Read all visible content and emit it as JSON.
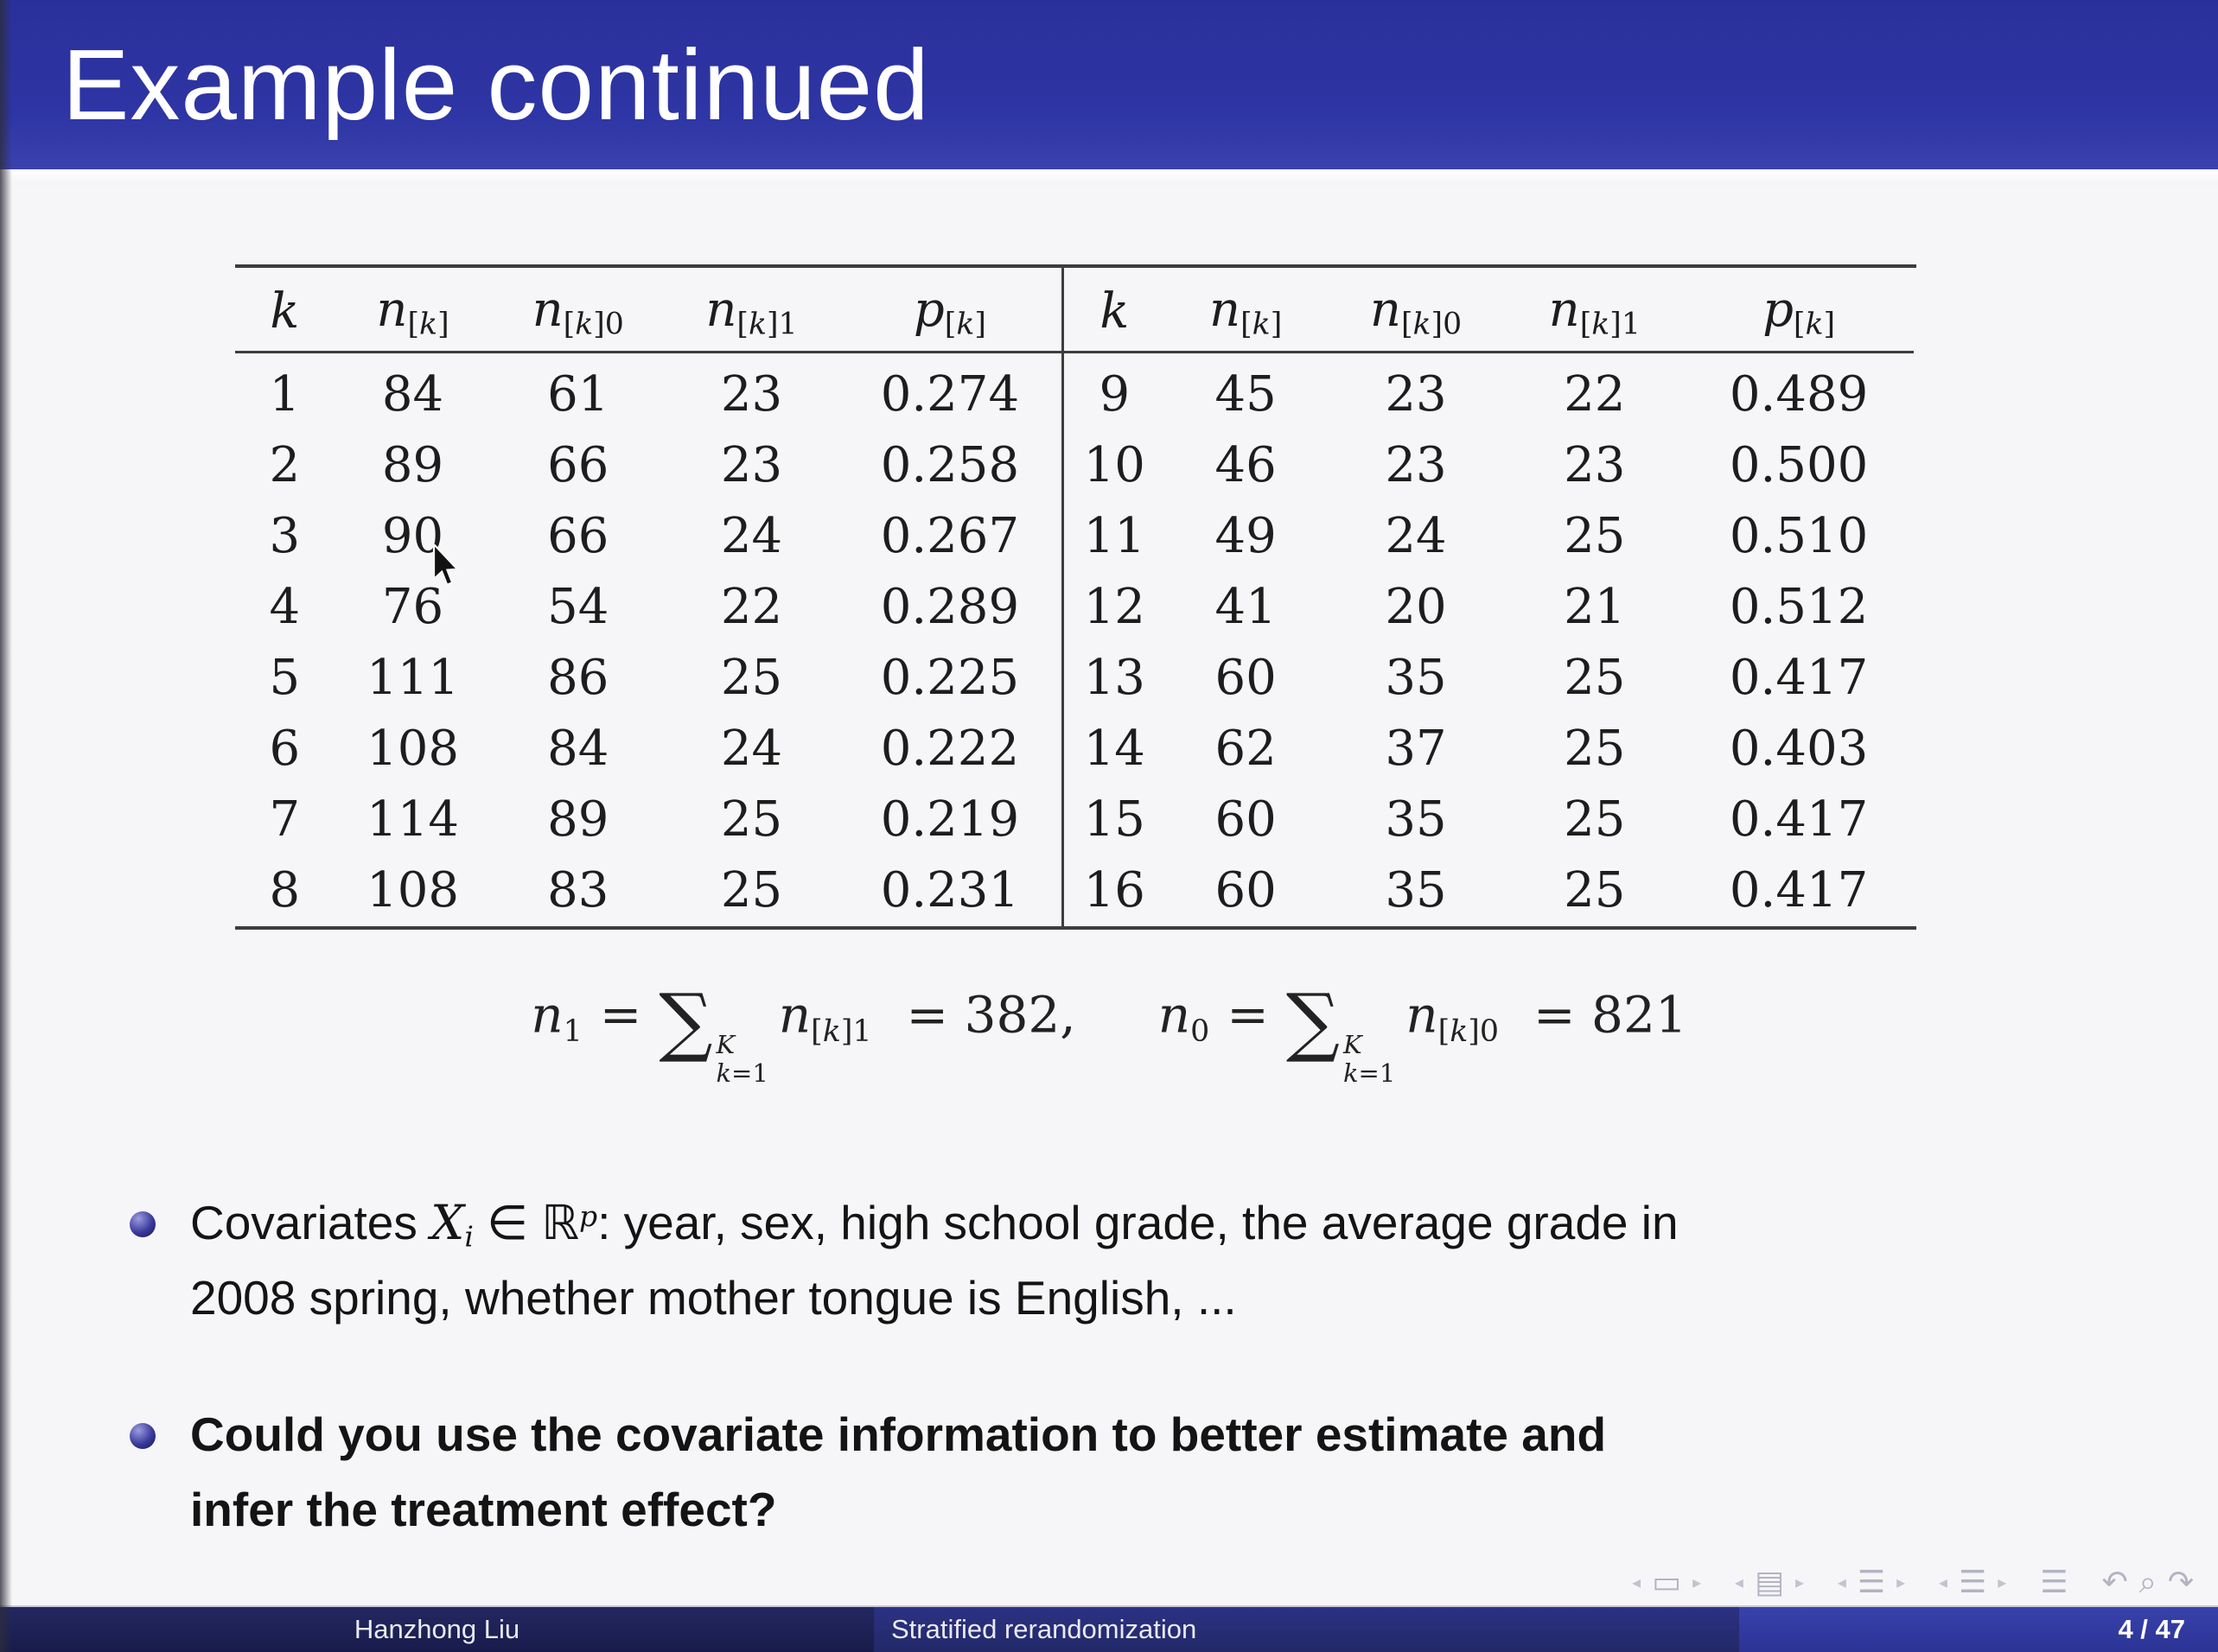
{
  "slide": {
    "title": "Example continued",
    "colors": {
      "titlebar_blue": "#2e35a4",
      "footer_author_bg": "#1b1e52",
      "footer_title_bg": "#272d7c",
      "footer_page_bg": "#3039a0",
      "bullet_ball": "#39399b",
      "background": "#f6f6f8"
    }
  },
  "table": {
    "headers": [
      {
        "base": "k",
        "sub": ""
      },
      {
        "base": "n",
        "sub": "[k]"
      },
      {
        "base": "n",
        "sub": "[k]0"
      },
      {
        "base": "n",
        "sub": "[k]1"
      },
      {
        "base": "p",
        "sub": "[k]"
      }
    ],
    "left_rows": [
      [
        "1",
        "84",
        "61",
        "23",
        "0.274"
      ],
      [
        "2",
        "89",
        "66",
        "23",
        "0.258"
      ],
      [
        "3",
        "90",
        "66",
        "24",
        "0.267"
      ],
      [
        "4",
        "76",
        "54",
        "22",
        "0.289"
      ],
      [
        "5",
        "111",
        "86",
        "25",
        "0.225"
      ],
      [
        "6",
        "108",
        "84",
        "24",
        "0.222"
      ],
      [
        "7",
        "114",
        "89",
        "25",
        "0.219"
      ],
      [
        "8",
        "108",
        "83",
        "25",
        "0.231"
      ]
    ],
    "right_rows": [
      [
        "9",
        "45",
        "23",
        "22",
        "0.489"
      ],
      [
        "10",
        "46",
        "23",
        "23",
        "0.500"
      ],
      [
        "11",
        "49",
        "24",
        "25",
        "0.510"
      ],
      [
        "12",
        "41",
        "20",
        "21",
        "0.512"
      ],
      [
        "13",
        "60",
        "35",
        "25",
        "0.417"
      ],
      [
        "14",
        "62",
        "37",
        "25",
        "0.403"
      ],
      [
        "15",
        "60",
        "35",
        "25",
        "0.417"
      ],
      [
        "16",
        "60",
        "35",
        "25",
        "0.417"
      ]
    ]
  },
  "formula": {
    "left": {
      "var": "n",
      "var_sub": "1",
      "equals": "=",
      "sum": "∑",
      "sum_sup": "K",
      "sum_sub": "k=1",
      "term": "n",
      "term_sub": "[k]1",
      "result": "= 382,"
    },
    "right": {
      "var": "n",
      "var_sub": "0",
      "equals": "=",
      "sum": "∑",
      "sum_sup": "K",
      "sum_sub": "k=1",
      "term": "n",
      "term_sub": "[k]0",
      "result": "= 821"
    }
  },
  "bullets": [
    {
      "bold": false,
      "lines": [
        [
          {
            "t": "text",
            "v": "Covariates "
          },
          {
            "t": "mi",
            "v": "X"
          },
          {
            "t": "msub",
            "v": "i"
          },
          {
            "t": "text",
            "v": " ∈ "
          },
          {
            "t": "bb",
            "v": "ℝ"
          },
          {
            "t": "msup",
            "v": "p"
          },
          {
            "t": "text",
            "v": ": year, sex, high school grade, the average grade in"
          }
        ],
        [
          {
            "t": "text",
            "v": "2008 spring, whether mother tongue is English, ..."
          }
        ]
      ]
    },
    {
      "bold": true,
      "lines": [
        [
          {
            "t": "text",
            "v": "Could you use the covariate information to better estimate and"
          }
        ],
        [
          {
            "t": "text",
            "v": "infer the treatment effect?"
          }
        ]
      ]
    }
  ],
  "nav": [
    {
      "glyph": "◂",
      "name": "nav-slide-prev-icon",
      "cls": "arr"
    },
    {
      "glyph": "▭",
      "name": "nav-slide-icon",
      "cls": ""
    },
    {
      "glyph": "▸",
      "name": "nav-slide-next-icon",
      "cls": "arr"
    },
    {
      "glyph": "◂",
      "name": "nav-frame-prev-icon",
      "cls": "arr gap"
    },
    {
      "glyph": "▤",
      "name": "nav-frame-icon",
      "cls": ""
    },
    {
      "glyph": "▸",
      "name": "nav-frame-next-icon",
      "cls": "arr"
    },
    {
      "glyph": "◂",
      "name": "nav-subsection-prev-icon",
      "cls": "arr gap"
    },
    {
      "glyph": "☰",
      "name": "nav-subsection-icon",
      "cls": ""
    },
    {
      "glyph": "▸",
      "name": "nav-subsection-next-icon",
      "cls": "arr"
    },
    {
      "glyph": "◂",
      "name": "nav-section-prev-icon",
      "cls": "arr gap"
    },
    {
      "glyph": "☰",
      "name": "nav-section-icon",
      "cls": ""
    },
    {
      "glyph": "▸",
      "name": "nav-section-next-icon",
      "cls": "arr"
    },
    {
      "glyph": "☰",
      "name": "nav-appendix-icon",
      "cls": "gap"
    },
    {
      "glyph": "↶",
      "name": "nav-back-icon",
      "cls": "gap"
    },
    {
      "glyph": "⌕",
      "name": "nav-search-icon",
      "cls": ""
    },
    {
      "glyph": "↷",
      "name": "nav-forward-icon",
      "cls": ""
    }
  ],
  "footer": {
    "author": "Hanzhong Liu",
    "deck_title": "Stratified rerandomization",
    "page": "4 / 47"
  }
}
